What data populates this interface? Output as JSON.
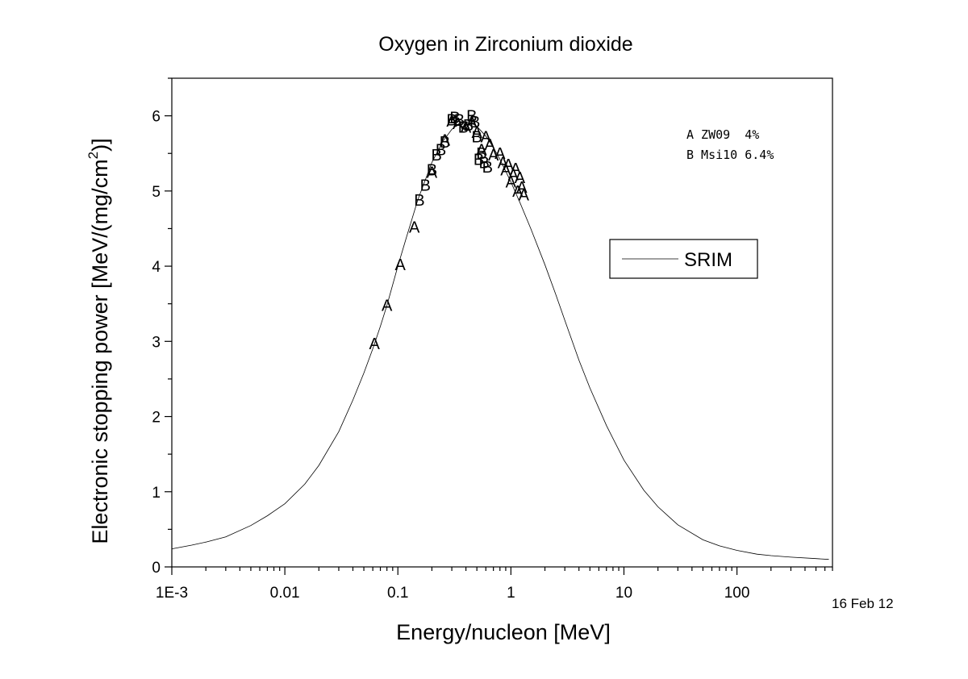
{
  "chart_data": {
    "type": "scatter",
    "title": "Oxygen in Zirconium dioxide",
    "xlabel": "Energy/nucleon [MeV]",
    "ylabel_main": "Electronic stopping power [MeV/(mg/cm",
    "ylabel_sup": "2",
    "ylabel_end": ")]",
    "xscale": "log",
    "xlim": [
      0.001,
      700
    ],
    "ylim": [
      0,
      6.5
    ],
    "xticks": [
      {
        "value": 0.001,
        "label": "1E-3"
      },
      {
        "value": 0.01,
        "label": "0.01"
      },
      {
        "value": 0.1,
        "label": "0.1"
      },
      {
        "value": 1,
        "label": "1"
      },
      {
        "value": 10,
        "label": "10"
      },
      {
        "value": 100,
        "label": "100"
      }
    ],
    "yticks": [
      0,
      1,
      2,
      3,
      4,
      5,
      6
    ],
    "date_stamp": "16 Feb 12",
    "marker_legend": [
      {
        "marker": "A",
        "text": "A ZW09  4%"
      },
      {
        "marker": "B",
        "text": "B Msi10 6.4%"
      }
    ],
    "line_legend": {
      "label": "SRIM",
      "position": "right"
    },
    "srim_curve": {
      "name": "SRIM",
      "x": [
        0.001,
        0.0015,
        0.002,
        0.003,
        0.005,
        0.007,
        0.01,
        0.015,
        0.02,
        0.03,
        0.04,
        0.05,
        0.06,
        0.07,
        0.08,
        0.1,
        0.12,
        0.15,
        0.2,
        0.25,
        0.3,
        0.35,
        0.4,
        0.45,
        0.5,
        0.6,
        0.7,
        0.8,
        1.0,
        1.2,
        1.5,
        2.0,
        2.5,
        3.0,
        4.0,
        5.0,
        7.0,
        10,
        15,
        20,
        30,
        50,
        70,
        100,
        150,
        200,
        300,
        500,
        650
      ],
      "y": [
        0.24,
        0.29,
        0.33,
        0.4,
        0.55,
        0.68,
        0.84,
        1.1,
        1.35,
        1.8,
        2.22,
        2.58,
        2.9,
        3.2,
        3.48,
        4.0,
        4.4,
        4.88,
        5.38,
        5.66,
        5.82,
        5.9,
        5.92,
        5.9,
        5.86,
        5.73,
        5.58,
        5.42,
        5.12,
        4.85,
        4.5,
        4.02,
        3.62,
        3.28,
        2.75,
        2.38,
        1.88,
        1.42,
        1.02,
        0.8,
        0.56,
        0.36,
        0.28,
        0.22,
        0.17,
        0.15,
        0.13,
        0.11,
        0.1
      ]
    },
    "series": [
      {
        "name": "A",
        "x": [
          0.062,
          0.08,
          0.105,
          0.14,
          0.2,
          0.26,
          0.3,
          0.34,
          0.4,
          0.45,
          0.5,
          0.55,
          0.6,
          0.65,
          0.7,
          0.8,
          0.85,
          0.9,
          0.95,
          1.0,
          1.05,
          1.1,
          1.15,
          1.2,
          1.25,
          1.3
        ],
        "y": [
          2.97,
          3.48,
          4.02,
          4.52,
          5.25,
          5.68,
          5.93,
          5.9,
          5.85,
          5.92,
          5.78,
          5.55,
          5.72,
          5.62,
          5.48,
          5.5,
          5.38,
          5.28,
          5.35,
          5.12,
          5.22,
          5.3,
          5.0,
          5.18,
          5.05,
          4.95
        ]
      },
      {
        "name": "B",
        "x": [
          0.155,
          0.175,
          0.2,
          0.22,
          0.24,
          0.26,
          0.3,
          0.32,
          0.35,
          0.38,
          0.42,
          0.45,
          0.48,
          0.5,
          0.52,
          0.55,
          0.58,
          0.62
        ],
        "y": [
          4.88,
          5.08,
          5.28,
          5.48,
          5.55,
          5.65,
          5.95,
          5.98,
          5.95,
          5.85,
          5.88,
          6.0,
          5.92,
          5.72,
          5.42,
          5.5,
          5.38,
          5.32
        ]
      }
    ]
  }
}
